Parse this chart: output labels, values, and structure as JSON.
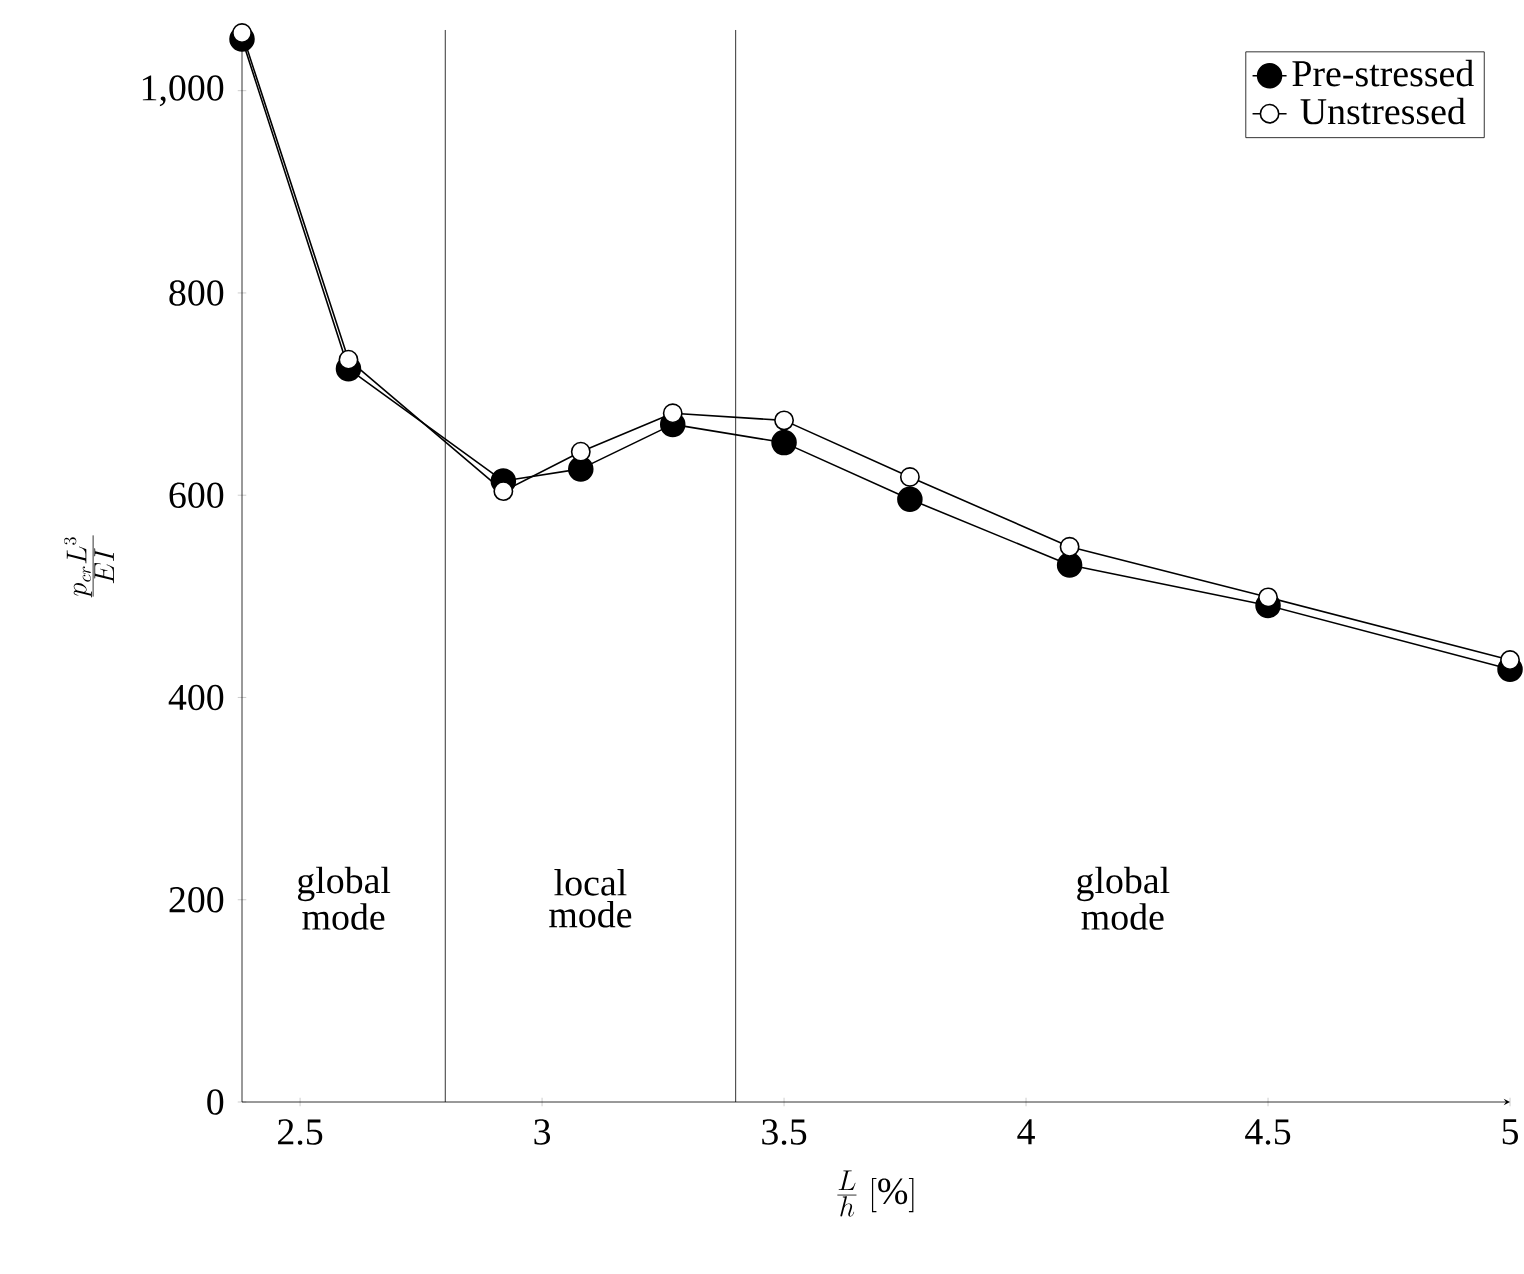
{
  "chart_data": {
    "type": "line",
    "xlabel": "\\frac{L}{h}\\ [\\%]",
    "ylabel": "\\frac{p_{cr}L^3}{EI}",
    "xlim": [
      2.38,
      5
    ],
    "ylim": [
      0,
      1060
    ],
    "xticks": [
      2.5,
      3,
      3.5,
      4,
      4.5,
      5
    ],
    "yticks": [
      0,
      200,
      400,
      600,
      800,
      {
        "value": 1000,
        "label": "1,000"
      }
    ],
    "x": [
      2.38,
      2.6,
      2.92,
      3.08,
      3.27,
      3.5,
      3.76,
      4.09,
      4.5,
      5.0
    ],
    "series": [
      {
        "name": "Pre-stressed",
        "color": "#000000",
        "values": [
          1051,
          725,
          614,
          626,
          670,
          652,
          596,
          531,
          491,
          428
        ]
      },
      {
        "name": "Unstressed",
        "color": "#000000",
        "values": [
          1057,
          734,
          604,
          643,
          681,
          674,
          618,
          549,
          499,
          437
        ]
      }
    ],
    "marker": "circle",
    "line_style": "solid",
    "legend": "top right",
    "grid": false,
    "ref_lines": [
      {
        "axis": "x",
        "value": 2.8
      },
      {
        "axis": "x",
        "value": 3.4
      }
    ],
    "annotations": [
      "global mode",
      "local mode",
      "global mode"
    ]
  }
}
